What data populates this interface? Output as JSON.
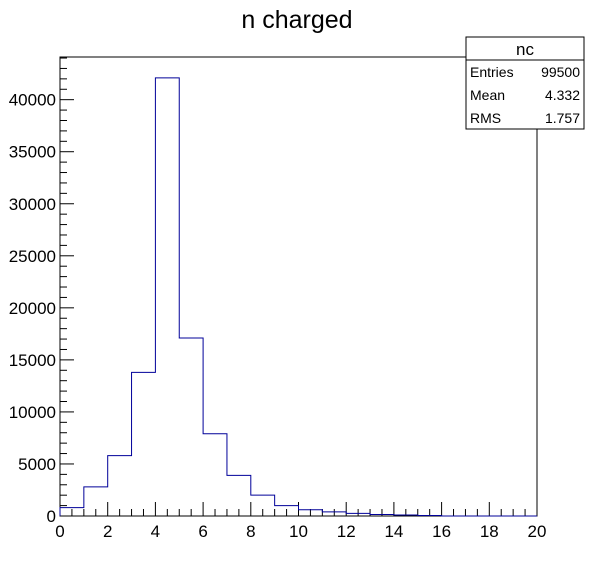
{
  "chart_data": {
    "type": "bar",
    "title": "n charged",
    "xlabel": "",
    "ylabel": "",
    "xlim": [
      0,
      20
    ],
    "ylim": [
      0,
      44100
    ],
    "bin_edges": [
      0,
      1,
      2,
      3,
      4,
      5,
      6,
      7,
      8,
      9,
      10,
      11,
      12,
      13,
      14,
      15,
      16,
      17,
      18,
      19,
      20
    ],
    "values": [
      800,
      2800,
      5800,
      13800,
      42100,
      17100,
      7900,
      3900,
      2000,
      1000,
      600,
      400,
      250,
      150,
      100,
      50,
      0,
      0,
      0,
      0
    ],
    "x_ticks": [
      "0",
      "2",
      "4",
      "6",
      "8",
      "10",
      "12",
      "14",
      "16",
      "18",
      "20"
    ],
    "y_ticks": [
      "0",
      "5000",
      "10000",
      "15000",
      "20000",
      "25000",
      "30000",
      "35000",
      "40000"
    ],
    "grid": false,
    "colors": {
      "histogram_line": "#000099",
      "axis": "#000000"
    },
    "stats_box": {
      "placement": "top-right",
      "title": "nc",
      "rows": [
        {
          "label": "Entries",
          "value": "99500"
        },
        {
          "label": "Mean",
          "value": "4.332"
        },
        {
          "label": "RMS",
          "value": "1.757"
        }
      ]
    }
  }
}
